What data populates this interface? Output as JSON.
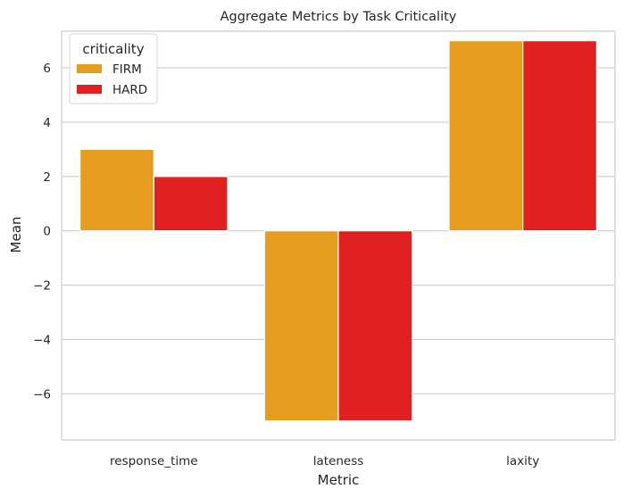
{
  "chart_data": {
    "type": "bar",
    "title": "Aggregate Metrics by Task Criticality",
    "xlabel": "Metric",
    "ylabel": "Mean",
    "categories": [
      "response_time",
      "lateness",
      "laxity"
    ],
    "series": [
      {
        "name": "FIRM",
        "color": "#e69c1f",
        "values": [
          3,
          -7,
          7
        ]
      },
      {
        "name": "HARD",
        "color": "#e02020",
        "values": [
          2,
          -7,
          7
        ]
      }
    ],
    "ylim": [
      -7.7,
      7.35
    ],
    "yticks": [
      -6,
      -4,
      -2,
      0,
      2,
      4,
      6
    ],
    "ytick_labels": [
      "−6",
      "−4",
      "−2",
      "0",
      "2",
      "4",
      "6"
    ],
    "grid": true,
    "legend": {
      "title": "criticality",
      "placement": "top-left"
    }
  }
}
